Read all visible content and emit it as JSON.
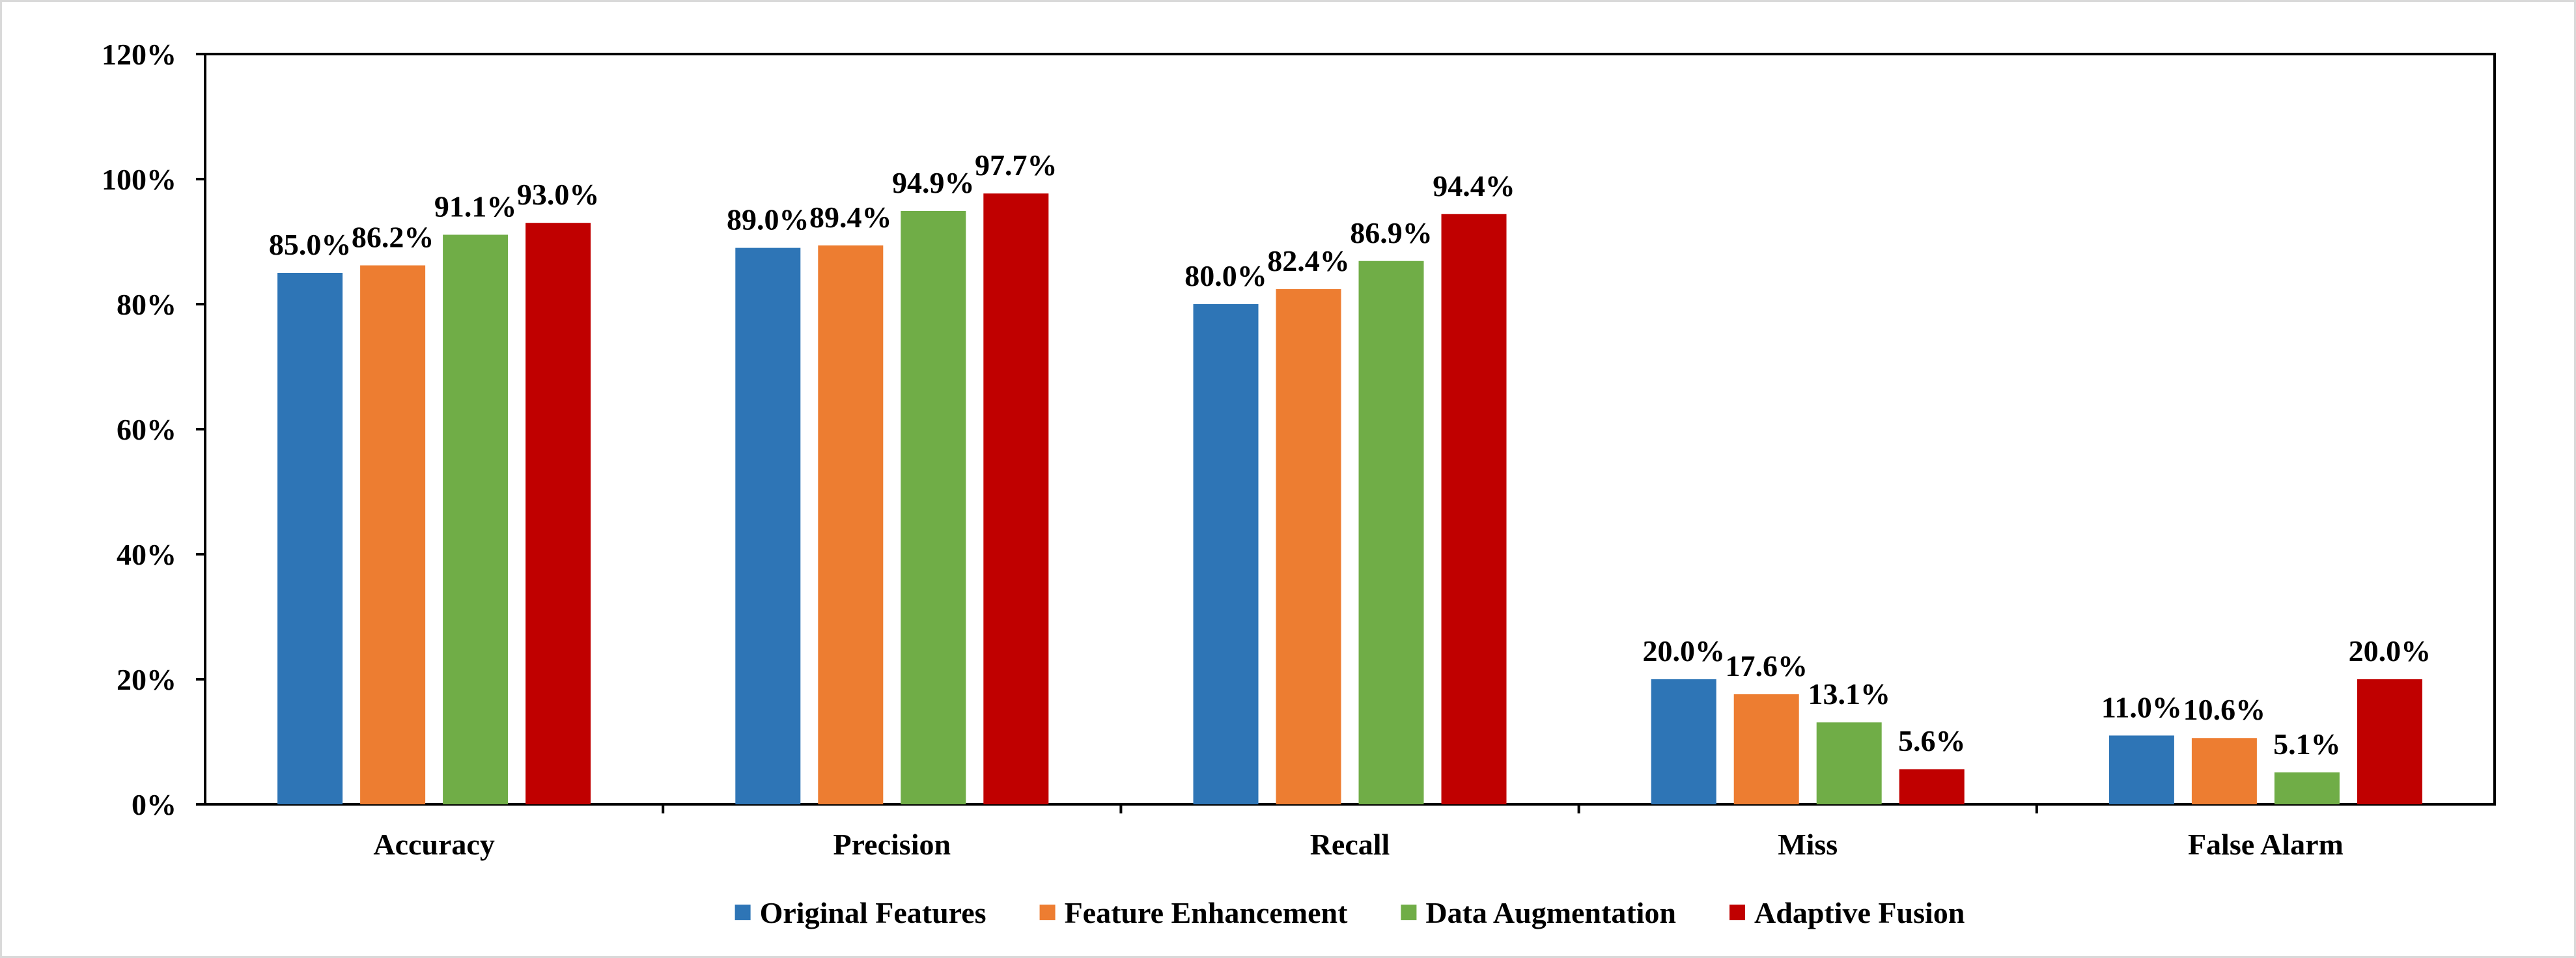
{
  "chart_data": {
    "type": "bar",
    "title": "",
    "xlabel": "",
    "ylabel": "",
    "categories": [
      "Accuracy",
      "Precision",
      "Recall",
      "Miss",
      "False Alarm"
    ],
    "ylim": [
      0,
      120
    ],
    "ytick_step": 20,
    "y_unit": "%",
    "ytick_labels": [
      "0%",
      "20%",
      "40%",
      "60%",
      "80%",
      "100%",
      "120%"
    ],
    "grid": false,
    "legend_position": "bottom",
    "series": [
      {
        "name": "Original Features",
        "color": "#2e75b6",
        "values": [
          85.0,
          89.0,
          80.0,
          20.0,
          11.0
        ],
        "labels": [
          "85.0%",
          "89.0%",
          "80.0%",
          "20.0%",
          "11.0%"
        ]
      },
      {
        "name": "Feature Enhancement",
        "color": "#ed7d31",
        "values": [
          86.2,
          89.4,
          82.4,
          17.6,
          10.6
        ],
        "labels": [
          "86.2%",
          "89.4%",
          "82.4%",
          "17.6%",
          "10.6%"
        ]
      },
      {
        "name": "Data Augmentation",
        "color": "#70ad47",
        "values": [
          91.1,
          94.9,
          86.9,
          13.1,
          5.1
        ],
        "labels": [
          "91.1%",
          "94.9%",
          "86.9%",
          "13.1%",
          "5.1%"
        ]
      },
      {
        "name": "Adaptive Fusion",
        "color": "#c00000",
        "values": [
          93.0,
          97.7,
          94.4,
          5.6,
          20.0
        ],
        "labels": [
          "93.0%",
          "97.7%",
          "94.4%",
          "5.6%",
          "20.0%"
        ]
      }
    ]
  }
}
